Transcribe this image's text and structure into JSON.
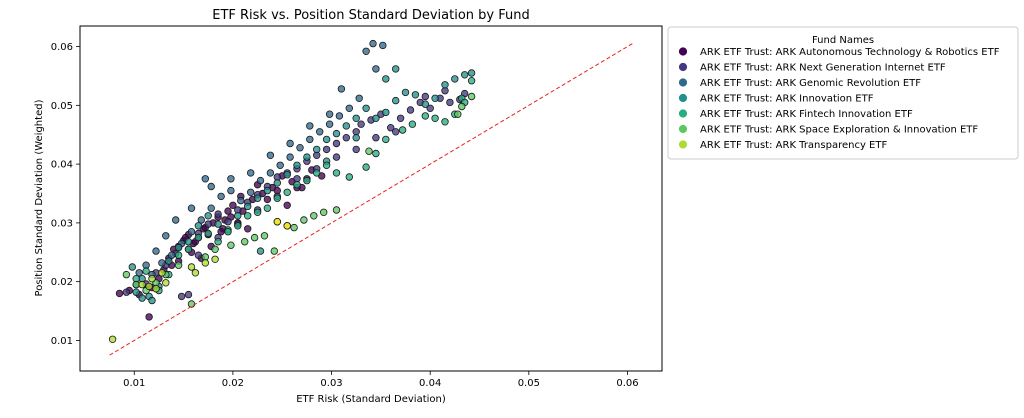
{
  "chart_data": {
    "type": "scatter",
    "title": "ETF Risk vs. Position Standard Deviation by Fund",
    "xlabel": "ETF Risk (Standard Deviation)",
    "ylabel": "Position Standard Deviation (Weighted)",
    "xlim": [
      0.0045,
      0.0635
    ],
    "ylim": [
      0.0048,
      0.0635
    ],
    "xticks": [
      0.01,
      0.02,
      0.03,
      0.04,
      0.05,
      0.06
    ],
    "xtick_labels": [
      "0.01",
      "0.02",
      "0.03",
      "0.04",
      "0.05",
      "0.06"
    ],
    "yticks": [
      0.01,
      0.02,
      0.03,
      0.04,
      0.05,
      0.06
    ],
    "ytick_labels": [
      "0.01",
      "0.02",
      "0.03",
      "0.04",
      "0.05",
      "0.06"
    ],
    "grid": false,
    "legend": {
      "title": "Fund Names",
      "placement": "outside-right-top"
    },
    "reference_line": {
      "from": [
        0.0075,
        0.0075
      ],
      "to": [
        0.0605,
        0.0605
      ],
      "color": "#e8231f",
      "style": "dashed"
    },
    "series": [
      {
        "name": "ARK ETF Trust: ARK Autonomous Technology & Robotics ETF",
        "color": "#440154",
        "points": [
          [
            0.0085,
            0.018
          ],
          [
            0.0095,
            0.0185
          ],
          [
            0.0105,
            0.0178
          ],
          [
            0.0118,
            0.019
          ],
          [
            0.0125,
            0.0205
          ],
          [
            0.013,
            0.022
          ],
          [
            0.0135,
            0.024
          ],
          [
            0.014,
            0.0255
          ],
          [
            0.0145,
            0.026
          ],
          [
            0.015,
            0.027
          ],
          [
            0.0155,
            0.028
          ],
          [
            0.016,
            0.0265
          ],
          [
            0.0165,
            0.0275
          ],
          [
            0.017,
            0.029
          ],
          [
            0.0175,
            0.028
          ],
          [
            0.018,
            0.03
          ],
          [
            0.0185,
            0.031
          ],
          [
            0.019,
            0.029
          ],
          [
            0.0195,
            0.032
          ],
          [
            0.02,
            0.033
          ],
          [
            0.0205,
            0.03
          ],
          [
            0.021,
            0.032
          ],
          [
            0.022,
            0.034
          ],
          [
            0.023,
            0.035
          ],
          [
            0.024,
            0.036
          ],
          [
            0.025,
            0.038
          ],
          [
            0.026,
            0.037
          ],
          [
            0.027,
            0.036
          ],
          [
            0.028,
            0.039
          ],
          [
            0.029,
            0.038
          ],
          [
            0.0115,
            0.014
          ],
          [
            0.0158,
            0.025
          ],
          [
            0.0168,
            0.024
          ],
          [
            0.0178,
            0.026
          ],
          [
            0.0198,
            0.031
          ],
          [
            0.0215,
            0.029
          ],
          [
            0.0235,
            0.034
          ],
          [
            0.0255,
            0.033
          ],
          [
            0.0265,
            0.036
          ],
          [
            0.0145,
            0.0235
          ],
          [
            0.0152,
            0.0275
          ],
          [
            0.0188,
            0.0285
          ],
          [
            0.0208,
            0.0345
          ],
          [
            0.0225,
            0.0365
          ],
          [
            0.0245,
            0.0355
          ],
          [
            0.0275,
            0.0375
          ],
          [
            0.0138,
            0.0228
          ],
          [
            0.0162,
            0.0268
          ],
          [
            0.0172,
            0.0292
          ],
          [
            0.0192,
            0.0305
          ]
        ]
      },
      {
        "name": "ARK ETF Trust: ARK Next Generation Internet ETF",
        "color": "#443983",
        "points": [
          [
            0.0092,
            0.0182
          ],
          [
            0.0112,
            0.0196
          ],
          [
            0.0122,
            0.0215
          ],
          [
            0.0132,
            0.0228
          ],
          [
            0.0142,
            0.0248
          ],
          [
            0.0155,
            0.0255
          ],
          [
            0.0165,
            0.0282
          ],
          [
            0.0175,
            0.0298
          ],
          [
            0.0185,
            0.0315
          ],
          [
            0.0195,
            0.0302
          ],
          [
            0.0205,
            0.0322
          ],
          [
            0.0215,
            0.0335
          ],
          [
            0.0225,
            0.0348
          ],
          [
            0.0235,
            0.0362
          ],
          [
            0.0245,
            0.0378
          ],
          [
            0.0255,
            0.0385
          ],
          [
            0.0265,
            0.0392
          ],
          [
            0.0275,
            0.0405
          ],
          [
            0.0285,
            0.0415
          ],
          [
            0.0295,
            0.0425
          ],
          [
            0.0305,
            0.0435
          ],
          [
            0.0315,
            0.0445
          ],
          [
            0.0325,
            0.0455
          ],
          [
            0.033,
            0.0468
          ],
          [
            0.034,
            0.0475
          ],
          [
            0.035,
            0.0485
          ],
          [
            0.036,
            0.0462
          ],
          [
            0.037,
            0.0478
          ],
          [
            0.038,
            0.0492
          ],
          [
            0.039,
            0.0505
          ],
          [
            0.04,
            0.0495
          ],
          [
            0.041,
            0.0512
          ],
          [
            0.042,
            0.0505
          ],
          [
            0.043,
            0.051
          ],
          [
            0.0435,
            0.052
          ],
          [
            0.0415,
            0.0525
          ],
          [
            0.0395,
            0.0515
          ],
          [
            0.0365,
            0.0455
          ],
          [
            0.0345,
            0.0445
          ],
          [
            0.0325,
            0.0425
          ],
          [
            0.0305,
            0.0412
          ],
          [
            0.0285,
            0.0392
          ],
          [
            0.0265,
            0.0375
          ],
          [
            0.0245,
            0.0345
          ],
          [
            0.0225,
            0.0322
          ],
          [
            0.0205,
            0.0298
          ],
          [
            0.0185,
            0.0275
          ],
          [
            0.0165,
            0.0245
          ],
          [
            0.0155,
            0.0178
          ],
          [
            0.0148,
            0.0175
          ]
        ]
      },
      {
        "name": "ARK ETF Trust: ARK Genomic Revolution ETF",
        "color": "#31688e",
        "points": [
          [
            0.0102,
            0.0195
          ],
          [
            0.0118,
            0.0212
          ],
          [
            0.0128,
            0.0232
          ],
          [
            0.0138,
            0.0245
          ],
          [
            0.0148,
            0.0265
          ],
          [
            0.0158,
            0.0285
          ],
          [
            0.0168,
            0.0305
          ],
          [
            0.0178,
            0.0325
          ],
          [
            0.0188,
            0.0345
          ],
          [
            0.0198,
            0.0355
          ],
          [
            0.0208,
            0.0338
          ],
          [
            0.0218,
            0.0352
          ],
          [
            0.0228,
            0.0372
          ],
          [
            0.0238,
            0.0385
          ],
          [
            0.0248,
            0.0398
          ],
          [
            0.0258,
            0.0412
          ],
          [
            0.0268,
            0.0428
          ],
          [
            0.0278,
            0.0442
          ],
          [
            0.0288,
            0.0455
          ],
          [
            0.0298,
            0.0468
          ],
          [
            0.0308,
            0.0482
          ],
          [
            0.0318,
            0.0495
          ],
          [
            0.0328,
            0.0512
          ],
          [
            0.031,
            0.0528
          ],
          [
            0.0342,
            0.0605
          ],
          [
            0.0352,
            0.0602
          ],
          [
            0.0335,
            0.0592
          ],
          [
            0.0345,
            0.0562
          ],
          [
            0.0298,
            0.0485
          ],
          [
            0.0278,
            0.0465
          ],
          [
            0.0258,
            0.0435
          ],
          [
            0.0238,
            0.0415
          ],
          [
            0.0218,
            0.0385
          ],
          [
            0.0198,
            0.0375
          ],
          [
            0.0178,
            0.0362
          ],
          [
            0.0172,
            0.0375
          ],
          [
            0.0158,
            0.0325
          ],
          [
            0.0142,
            0.0305
          ],
          [
            0.0132,
            0.0278
          ],
          [
            0.0122,
            0.0252
          ],
          [
            0.0112,
            0.0228
          ],
          [
            0.0105,
            0.0215
          ]
        ]
      },
      {
        "name": "ARK ETF Trust: ARK Innovation ETF",
        "color": "#21918c",
        "points": [
          [
            0.0098,
            0.0225
          ],
          [
            0.0108,
            0.0205
          ],
          [
            0.0115,
            0.0175
          ],
          [
            0.0125,
            0.0192
          ],
          [
            0.0135,
            0.0235
          ],
          [
            0.0145,
            0.0258
          ],
          [
            0.0155,
            0.0268
          ],
          [
            0.0165,
            0.0295
          ],
          [
            0.0175,
            0.0312
          ],
          [
            0.0185,
            0.0298
          ],
          [
            0.0195,
            0.0288
          ],
          [
            0.0205,
            0.0312
          ],
          [
            0.0215,
            0.0328
          ],
          [
            0.0225,
            0.0342
          ],
          [
            0.0235,
            0.0355
          ],
          [
            0.0245,
            0.0368
          ],
          [
            0.0255,
            0.0382
          ],
          [
            0.0265,
            0.0398
          ],
          [
            0.0275,
            0.0412
          ],
          [
            0.0285,
            0.0425
          ],
          [
            0.0295,
            0.0442
          ],
          [
            0.0305,
            0.0452
          ],
          [
            0.0315,
            0.0465
          ],
          [
            0.0325,
            0.0478
          ],
          [
            0.0335,
            0.0495
          ],
          [
            0.0345,
            0.0478
          ],
          [
            0.0355,
            0.0488
          ],
          [
            0.0365,
            0.0508
          ],
          [
            0.0375,
            0.0522
          ],
          [
            0.0385,
            0.0518
          ],
          [
            0.0395,
            0.0502
          ],
          [
            0.0405,
            0.0512
          ],
          [
            0.0415,
            0.0535
          ],
          [
            0.0425,
            0.0545
          ],
          [
            0.0435,
            0.0552
          ],
          [
            0.0442,
            0.0555
          ],
          [
            0.0365,
            0.0562
          ],
          [
            0.0355,
            0.0545
          ],
          [
            0.0325,
            0.0445
          ],
          [
            0.0295,
            0.0405
          ],
          [
            0.0228,
            0.0252
          ],
          [
            0.0108,
            0.0172
          ],
          [
            0.0118,
            0.0168
          ],
          [
            0.0102,
            0.0182
          ]
        ]
      },
      {
        "name": "ARK ETF Trust: ARK Fintech Innovation ETF",
        "color": "#27ad81",
        "points": [
          [
            0.0102,
            0.0205
          ],
          [
            0.0112,
            0.0218
          ],
          [
            0.0125,
            0.0185
          ],
          [
            0.0135,
            0.0212
          ],
          [
            0.0145,
            0.0245
          ],
          [
            0.0155,
            0.0255
          ],
          [
            0.0165,
            0.0275
          ],
          [
            0.0175,
            0.0282
          ],
          [
            0.0185,
            0.0268
          ],
          [
            0.0195,
            0.0285
          ],
          [
            0.0205,
            0.0295
          ],
          [
            0.0215,
            0.0312
          ],
          [
            0.0225,
            0.0318
          ],
          [
            0.0235,
            0.0325
          ],
          [
            0.0245,
            0.0342
          ],
          [
            0.0255,
            0.0352
          ],
          [
            0.0265,
            0.0365
          ],
          [
            0.0275,
            0.0372
          ],
          [
            0.0285,
            0.0385
          ],
          [
            0.0295,
            0.0398
          ],
          [
            0.0305,
            0.0385
          ],
          [
            0.0318,
            0.0378
          ],
          [
            0.0335,
            0.0395
          ],
          [
            0.0345,
            0.0418
          ],
          [
            0.0355,
            0.0442
          ],
          [
            0.0372,
            0.0458
          ],
          [
            0.0382,
            0.0468
          ],
          [
            0.0395,
            0.0482
          ],
          [
            0.0405,
            0.0478
          ],
          [
            0.0415,
            0.0472
          ],
          [
            0.0425,
            0.0485
          ],
          [
            0.0432,
            0.0512
          ],
          [
            0.0442,
            0.0542
          ],
          [
            0.0435,
            0.0505
          ]
        ]
      },
      {
        "name": "ARK ETF Trust: ARK Space Exploration & Innovation ETF",
        "color": "#5ec962",
        "points": [
          [
            0.0092,
            0.0212
          ],
          [
            0.0102,
            0.0195
          ],
          [
            0.0112,
            0.0185
          ],
          [
            0.0122,
            0.0198
          ],
          [
            0.0132,
            0.0212
          ],
          [
            0.0145,
            0.0228
          ],
          [
            0.0158,
            0.0162
          ],
          [
            0.0172,
            0.0242
          ],
          [
            0.0182,
            0.0255
          ],
          [
            0.0198,
            0.0262
          ],
          [
            0.0212,
            0.0268
          ],
          [
            0.0222,
            0.0275
          ],
          [
            0.0232,
            0.0278
          ],
          [
            0.0242,
            0.0252
          ],
          [
            0.0262,
            0.0292
          ],
          [
            0.0272,
            0.0305
          ],
          [
            0.0282,
            0.0312
          ],
          [
            0.0292,
            0.0318
          ],
          [
            0.0305,
            0.0322
          ],
          [
            0.0338,
            0.0422
          ],
          [
            0.0432,
            0.0498
          ],
          [
            0.0442,
            0.0515
          ],
          [
            0.0428,
            0.0485
          ]
        ]
      },
      {
        "name": "ARK ETF Trust: ARK Transparency ETF",
        "color": "#addc30",
        "points": [
          [
            0.0078,
            0.0102
          ],
          [
            0.0108,
            0.0195
          ],
          [
            0.0118,
            0.0205
          ],
          [
            0.0122,
            0.0188
          ],
          [
            0.0128,
            0.0215
          ],
          [
            0.0132,
            0.0198
          ],
          [
            0.0158,
            0.0225
          ],
          [
            0.0162,
            0.0215
          ],
          [
            0.0172,
            0.0232
          ],
          [
            0.0182,
            0.0238
          ],
          [
            0.0245,
            0.0302
          ],
          [
            0.0255,
            0.0295
          ],
          [
            0.0115,
            0.0192
          ]
        ]
      },
      {
        "name": "ARK ETF Trust: ARK Transparency ETF",
        "color": "#fde725",
        "show_in_legend": false,
        "points": [
          [
            0.0245,
            0.0302
          ],
          [
            0.0255,
            0.0295
          ]
        ]
      }
    ]
  }
}
